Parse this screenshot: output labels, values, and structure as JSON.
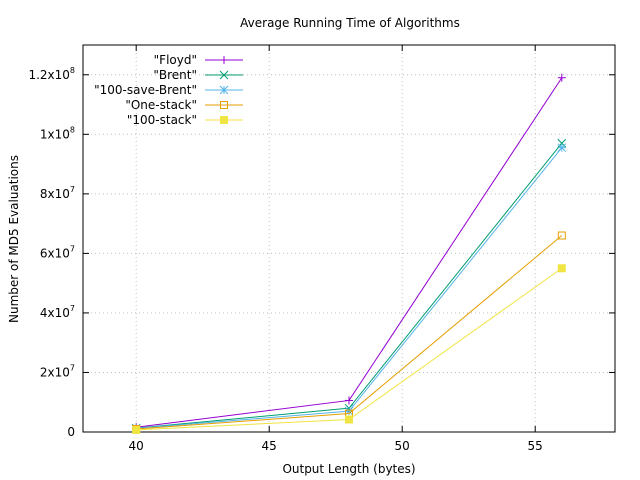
{
  "chart_data": {
    "type": "line",
    "title": "Average Running Time of Algorithms",
    "xlabel": "Output Length (bytes)",
    "ylabel": "Number of MD5 Evaluations",
    "xlim": [
      38,
      58
    ],
    "ylim": [
      0,
      130000000
    ],
    "x_ticks": [
      40,
      45,
      50,
      55
    ],
    "x_tick_labels": [
      "40",
      "45",
      "50",
      "55"
    ],
    "y_ticks": [
      0,
      20000000,
      40000000,
      60000000,
      80000000,
      100000000,
      120000000
    ],
    "y_tick_labels": [
      {
        "base": "0",
        "exp": ""
      },
      {
        "base": "2x10",
        "exp": "7"
      },
      {
        "base": "4x10",
        "exp": "7"
      },
      {
        "base": "6x10",
        "exp": "7"
      },
      {
        "base": "8x10",
        "exp": "7"
      },
      {
        "base": "1x10",
        "exp": "8"
      },
      {
        "base": "1.2x10",
        "exp": "8"
      }
    ],
    "grid": true,
    "legend_position": "top-left",
    "x": [
      40,
      48,
      56
    ],
    "series": [
      {
        "name": "\"Floyd\"",
        "color": "#9400d3",
        "marker": "plus",
        "values": [
          1600000,
          10600000,
          119000000
        ]
      },
      {
        "name": "\"Brent\"",
        "color": "#009e73",
        "marker": "cross",
        "values": [
          1300000,
          8000000,
          97000000
        ]
      },
      {
        "name": "\"100-save-Brent\"",
        "color": "#56b4e9",
        "marker": "star",
        "values": [
          1200000,
          7000000,
          95500000
        ]
      },
      {
        "name": "\"One-stack\"",
        "color": "#e69f00",
        "marker": "open-square",
        "values": [
          1000000,
          6200000,
          66000000
        ]
      },
      {
        "name": "\"100-stack\"",
        "color": "#f0e442",
        "marker": "filled-square",
        "values": [
          700000,
          4200000,
          55000000
        ]
      }
    ]
  }
}
